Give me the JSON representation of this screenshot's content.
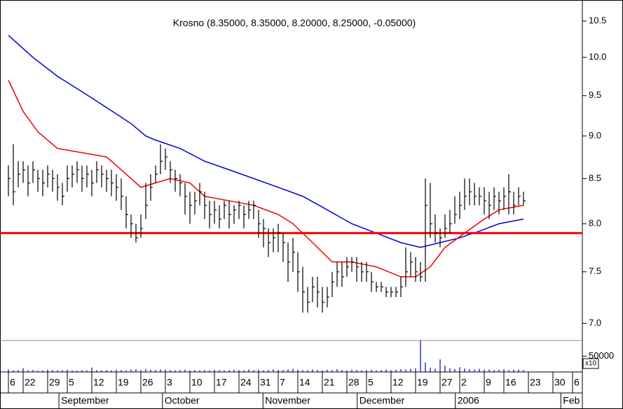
{
  "chart_data": {
    "type": "hlc",
    "title": "Krosno (8.35000, 8.35000, 8.20000, 8.25000, -0.05000)",
    "log_scale": true,
    "grid": false,
    "bar_color": "#000000",
    "xlim": [
      0,
      117
    ],
    "ylim": [
      6.84,
      10.75
    ],
    "yticks": [
      10.5,
      {
        "value": 10,
        "label": "10.0"
      },
      9.5,
      {
        "value": 9,
        "label": "9.0"
      },
      8.5,
      {
        "value": 8,
        "label": "8.0"
      },
      7.5,
      {
        "value": 7,
        "label": "7.0"
      }
    ],
    "xticks": [
      {
        "value": 0,
        "label": "6"
      },
      {
        "value": 3,
        "label": "22"
      },
      {
        "value": 8,
        "label": "29"
      },
      {
        "value": 12,
        "label": "5"
      },
      {
        "value": 17,
        "label": "12"
      },
      {
        "value": 22,
        "label": "19"
      },
      {
        "value": 27,
        "label": "26"
      },
      {
        "value": 32,
        "label": "3"
      },
      {
        "value": 37,
        "label": "10"
      },
      {
        "value": 42,
        "label": "17"
      },
      {
        "value": 47,
        "label": "24"
      },
      {
        "value": 51,
        "label": "31"
      },
      {
        "value": 55,
        "label": "7"
      },
      {
        "value": 59,
        "label": "14"
      },
      {
        "value": 64,
        "label": "21"
      },
      {
        "value": 69,
        "label": "28"
      },
      {
        "value": 73,
        "label": "5"
      },
      {
        "value": 78,
        "label": "12"
      },
      {
        "value": 83,
        "label": "19"
      },
      {
        "value": 88,
        "label": "27"
      },
      {
        "value": 92,
        "label": "2"
      },
      {
        "value": 97,
        "label": "9"
      },
      {
        "value": 101,
        "label": "16"
      },
      {
        "value": 106,
        "label": "23"
      },
      {
        "value": 111,
        "label": "30"
      },
      {
        "value": 115,
        "label": "6"
      }
    ],
    "month_ticks": [
      {
        "value": 10.3,
        "label": "September"
      },
      {
        "value": 31.4,
        "label": "October"
      },
      {
        "value": 51.9,
        "label": "November"
      },
      {
        "value": 71.1,
        "label": "December"
      },
      {
        "value": 91.1,
        "label": "2006"
      },
      {
        "value": 112.6,
        "label": "Feb"
      }
    ],
    "high": [
      8.65,
      8.9,
      8.7,
      8.7,
      8.65,
      8.7,
      8.6,
      8.6,
      8.65,
      8.6,
      8.55,
      8.45,
      8.65,
      8.65,
      8.7,
      8.65,
      8.65,
      8.6,
      8.7,
      8.65,
      8.6,
      8.6,
      8.55,
      8.5,
      8.3,
      8.1,
      8.0,
      8.1,
      8.45,
      8.55,
      8.65,
      8.9,
      8.85,
      8.7,
      8.6,
      8.55,
      8.45,
      8.35,
      8.35,
      8.45,
      8.35,
      8.25,
      8.25,
      8.2,
      8.25,
      8.25,
      8.2,
      8.25,
      8.2,
      8.25,
      8.25,
      8.15,
      8.05,
      7.95,
      7.95,
      8.0,
      7.9,
      7.8,
      7.85,
      7.7,
      7.55,
      7.35,
      7.45,
      7.45,
      7.35,
      7.35,
      7.5,
      7.6,
      7.6,
      7.65,
      7.65,
      7.65,
      7.6,
      7.6,
      7.5,
      7.4,
      7.4,
      7.35,
      7.35,
      7.35,
      7.45,
      7.75,
      7.7,
      7.65,
      7.6,
      8.5,
      8.45,
      8.1,
      7.95,
      8.1,
      8.15,
      8.3,
      8.35,
      8.5,
      8.5,
      8.45,
      8.4,
      8.4,
      8.35,
      8.4,
      8.35,
      8.4,
      8.55,
      8.35,
      8.4,
      8.35
    ],
    "low": [
      8.3,
      8.2,
      8.4,
      8.45,
      8.3,
      8.45,
      8.35,
      8.3,
      8.4,
      8.35,
      8.25,
      8.2,
      8.35,
      8.4,
      8.45,
      8.35,
      8.4,
      8.3,
      8.45,
      8.4,
      8.35,
      8.3,
      8.25,
      8.15,
      7.95,
      7.85,
      7.8,
      7.85,
      8.05,
      8.25,
      8.45,
      8.55,
      8.6,
      8.45,
      8.35,
      8.3,
      8.1,
      8.0,
      8.1,
      8.2,
      8.05,
      7.95,
      8.0,
      7.95,
      8.05,
      7.95,
      8.0,
      8.05,
      7.95,
      8.05,
      8.05,
      7.85,
      7.75,
      7.65,
      7.7,
      7.7,
      7.6,
      7.4,
      7.5,
      7.3,
      7.1,
      7.1,
      7.2,
      7.15,
      7.1,
      7.15,
      7.25,
      7.35,
      7.35,
      7.45,
      7.5,
      7.4,
      7.4,
      7.4,
      7.3,
      7.3,
      7.3,
      7.25,
      7.25,
      7.25,
      7.25,
      7.35,
      7.45,
      7.4,
      7.4,
      7.4,
      7.85,
      7.8,
      7.75,
      7.85,
      7.9,
      8.0,
      8.05,
      8.15,
      8.2,
      8.2,
      8.2,
      8.1,
      8.05,
      8.15,
      8.1,
      8.15,
      8.1,
      8.1,
      8.2,
      8.2
    ],
    "close": [
      8.5,
      8.35,
      8.55,
      8.6,
      8.45,
      8.6,
      8.5,
      8.45,
      8.55,
      8.5,
      8.4,
      8.3,
      8.5,
      8.55,
      8.6,
      8.5,
      8.55,
      8.45,
      8.6,
      8.55,
      8.5,
      8.45,
      8.4,
      8.3,
      8.1,
      8.0,
      7.85,
      7.95,
      8.2,
      8.4,
      8.55,
      8.7,
      8.75,
      8.6,
      8.5,
      8.45,
      8.3,
      8.2,
      8.25,
      8.35,
      8.2,
      8.1,
      8.15,
      8.05,
      8.2,
      8.1,
      8.15,
      8.2,
      8.1,
      8.15,
      8.2,
      8.0,
      7.95,
      7.8,
      7.85,
      7.9,
      7.8,
      7.6,
      7.7,
      7.5,
      7.3,
      7.2,
      7.35,
      7.3,
      7.2,
      7.25,
      7.4,
      7.5,
      7.45,
      7.55,
      7.6,
      7.55,
      7.5,
      7.5,
      7.4,
      7.35,
      7.35,
      7.3,
      7.3,
      7.3,
      7.35,
      7.5,
      7.6,
      7.5,
      7.45,
      8.2,
      8.0,
      7.9,
      7.85,
      7.95,
      8.0,
      8.1,
      8.2,
      8.3,
      8.35,
      8.3,
      8.3,
      8.25,
      8.2,
      8.3,
      8.25,
      8.3,
      8.35,
      8.2,
      8.3,
      8.25
    ],
    "series": [
      {
        "color": "#0000dd",
        "x": [
          0,
          5,
          10,
          15,
          20,
          25,
          28,
          30,
          35,
          40,
          45,
          50,
          55,
          60,
          65,
          70,
          75,
          80,
          84,
          88,
          92,
          96,
          100,
          105
        ],
        "values": [
          10.3,
          10.0,
          9.75,
          9.55,
          9.35,
          9.15,
          9.0,
          8.95,
          8.85,
          8.7,
          8.6,
          8.5,
          8.4,
          8.3,
          8.15,
          8.0,
          7.9,
          7.8,
          7.75,
          7.8,
          7.85,
          7.92,
          8.0,
          8.05
        ]
      },
      {
        "color": "#ee0000",
        "x": [
          0,
          3,
          6,
          10,
          15,
          20,
          24,
          27,
          30,
          33,
          37,
          40,
          45,
          50,
          55,
          58,
          62,
          66,
          70,
          75,
          80,
          83,
          86,
          89,
          93,
          97,
          100,
          105
        ],
        "values": [
          9.7,
          9.3,
          9.05,
          8.85,
          8.8,
          8.75,
          8.55,
          8.4,
          8.45,
          8.5,
          8.45,
          8.3,
          8.25,
          8.2,
          8.1,
          8.0,
          7.8,
          7.6,
          7.6,
          7.55,
          7.45,
          7.45,
          7.55,
          7.75,
          7.9,
          8.05,
          8.15,
          8.2
        ]
      }
    ],
    "hline": {
      "value": 7.9,
      "color": "#ff0000"
    },
    "volume": {
      "color": "#0000cc",
      "ylim": [
        0,
        100000
      ],
      "yticks": [
        50000
      ],
      "multiplier": "x10",
      "values": [
        8000,
        5000,
        6000,
        12000,
        5000,
        6000,
        4000,
        5000,
        7000,
        6000,
        5000,
        6000,
        7000,
        5000,
        4000,
        6000,
        5000,
        14000,
        6000,
        5000,
        6000,
        5000,
        7000,
        6000,
        5000,
        8000,
        9000,
        6000,
        10000,
        7000,
        6000,
        8000,
        7000,
        6000,
        5000,
        6000,
        7000,
        5000,
        6000,
        5000,
        6000,
        5000,
        7000,
        6000,
        5000,
        6000,
        7000,
        6000,
        5000,
        8000,
        6000,
        7000,
        5000,
        6000,
        9000,
        7000,
        6000,
        8000,
        10000,
        7000,
        6000,
        5000,
        8000,
        6000,
        5000,
        7000,
        6000,
        9000,
        6000,
        5000,
        7000,
        6000,
        5000,
        6000,
        7000,
        5000,
        6000,
        8000,
        6000,
        7000,
        9000,
        8000,
        10000,
        12000,
        100000,
        30000,
        14000,
        10000,
        40000,
        20000,
        12000,
        9000,
        15000,
        11000,
        9000,
        8000,
        10000,
        7000,
        8000,
        6000,
        7000,
        9000,
        6000,
        7000,
        8000,
        6000
      ]
    }
  }
}
